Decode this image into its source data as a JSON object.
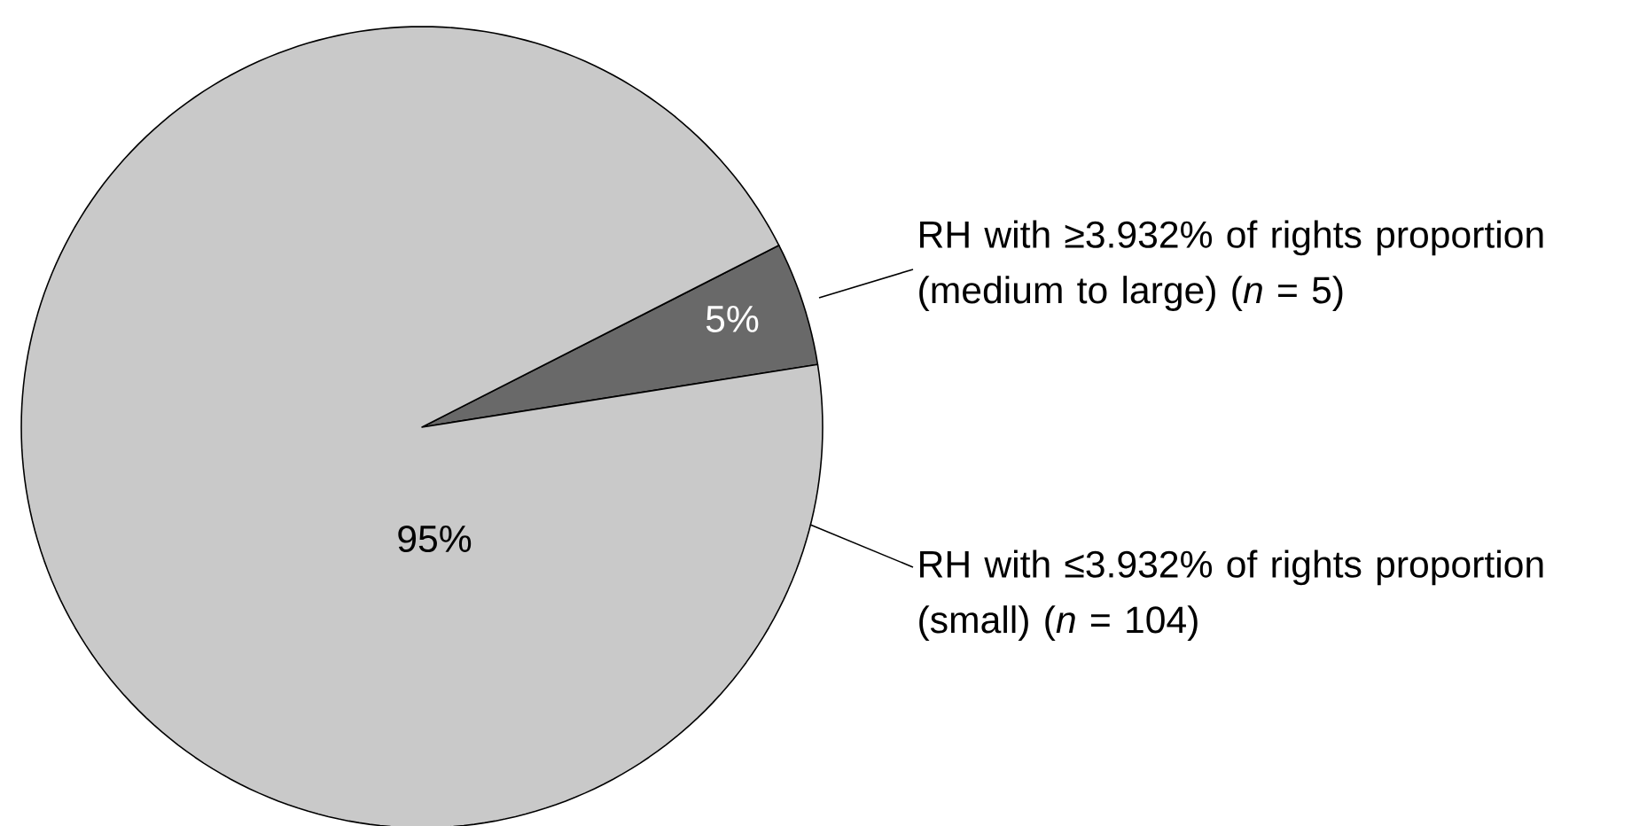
{
  "chart_data": {
    "type": "pie",
    "categories": [
      "RH with ≥3.932% of rights proportion (medium to large) (*n* = 5)",
      "RH with ≤3.932% of rights proportion (small) (*n* = 104)"
    ],
    "values": [
      5,
      95
    ],
    "colors": [
      "#696969",
      "#c9c9c9"
    ],
    "value_labels": [
      "5%",
      "95%"
    ]
  }
}
